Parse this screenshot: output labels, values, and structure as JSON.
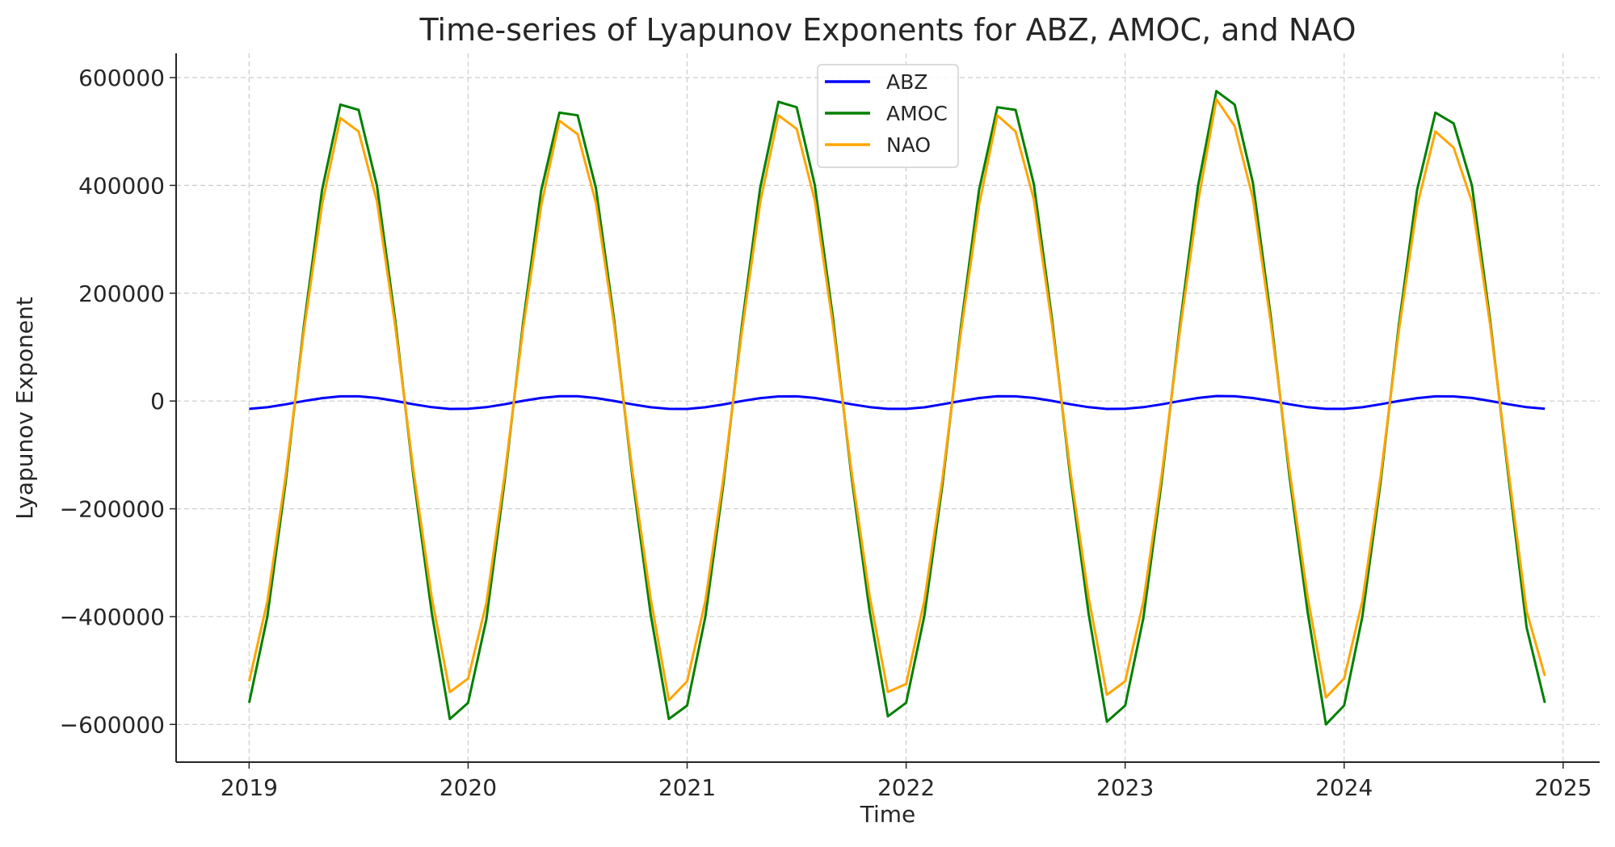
{
  "chart_data": {
    "type": "line",
    "title": "Time-series of Lyapunov Exponents for ABZ, AMOC, and NAO",
    "xlabel": "Time",
    "ylabel": "Lyapunov Exponent",
    "xlim": [
      "2018-09",
      "2025-03"
    ],
    "ylim": [
      -670000,
      645000
    ],
    "xticks": [
      "2019",
      "2020",
      "2021",
      "2022",
      "2023",
      "2024",
      "2025"
    ],
    "yticks": [
      -600000,
      -400000,
      -200000,
      0,
      200000,
      400000,
      600000
    ],
    "ytick_labels": [
      "−600000",
      "−400000",
      "−200000",
      "0",
      "200000",
      "400000",
      "600000"
    ],
    "grid": true,
    "legend_placement": "upper-center",
    "x_start": "2019-01",
    "x_frequency": "monthly",
    "series": [
      {
        "name": "ABZ",
        "color": "#0000ff",
        "values": [
          -14600,
          -11600,
          -6200,
          0,
          5400,
          8600,
          8600,
          5600,
          200,
          -6000,
          -11400,
          -14800,
          -14500,
          -11500,
          -6000,
          200,
          5600,
          9000,
          8800,
          5500,
          100,
          -6200,
          -11600,
          -14600,
          -14700,
          -11600,
          -6300,
          0,
          5300,
          8500,
          8700,
          5600,
          300,
          -6000,
          -11300,
          -14600,
          -14600,
          -11700,
          -6100,
          100,
          5500,
          8800,
          8600,
          5700,
          200,
          -6100,
          -11500,
          -14700,
          -14500,
          -11500,
          -6200,
          0,
          5600,
          9200,
          8800,
          5500,
          200,
          -6000,
          -11400,
          -14600,
          -14600,
          -11600,
          -6100,
          100,
          5400,
          8700,
          8500,
          5600,
          100,
          -6100,
          -11500,
          -14500
        ]
      },
      {
        "name": "AMOC",
        "color": "#008000",
        "values": [
          -560000,
          -400000,
          -151000,
          139000,
          392000,
          550000,
          540000,
          400000,
          151000,
          -139000,
          -392000,
          -590000,
          -560000,
          -405000,
          -148000,
          142000,
          390000,
          535000,
          530000,
          395000,
          150000,
          -140000,
          -395000,
          -590000,
          -565000,
          -400000,
          -150000,
          140000,
          395000,
          555000,
          545000,
          400000,
          152000,
          -138000,
          -390000,
          -585000,
          -560000,
          -398000,
          -152000,
          138000,
          392000,
          545000,
          540000,
          402000,
          150000,
          -142000,
          -395000,
          -595000,
          -565000,
          -402000,
          -150000,
          140000,
          400000,
          575000,
          550000,
          405000,
          151000,
          -139000,
          -392000,
          -600000,
          -565000,
          -400000,
          -150000,
          141000,
          392000,
          535000,
          515000,
          400000,
          149000,
          -140000,
          -420000,
          -560000
        ]
      },
      {
        "name": "NAO",
        "color": "#ffa500",
        "values": [
          -520000,
          -372000,
          -140000,
          130000,
          365000,
          525000,
          500000,
          371000,
          140000,
          -129000,
          -364000,
          -540000,
          -515000,
          -375000,
          -138000,
          132000,
          362000,
          520000,
          495000,
          368000,
          141000,
          -130000,
          -366000,
          -555000,
          -520000,
          -371000,
          -140000,
          129000,
          368000,
          530000,
          505000,
          372000,
          139000,
          -129000,
          -362000,
          -540000,
          -525000,
          -370000,
          -142000,
          128000,
          364000,
          530000,
          500000,
          374000,
          140000,
          -131000,
          -365000,
          -545000,
          -520000,
          -372000,
          -139000,
          130000,
          370000,
          560000,
          510000,
          376000,
          140000,
          -128000,
          -364000,
          -550000,
          -515000,
          -371000,
          -140000,
          131000,
          362000,
          500000,
          470000,
          370000,
          141000,
          -130000,
          -390000,
          -510000
        ]
      }
    ]
  }
}
